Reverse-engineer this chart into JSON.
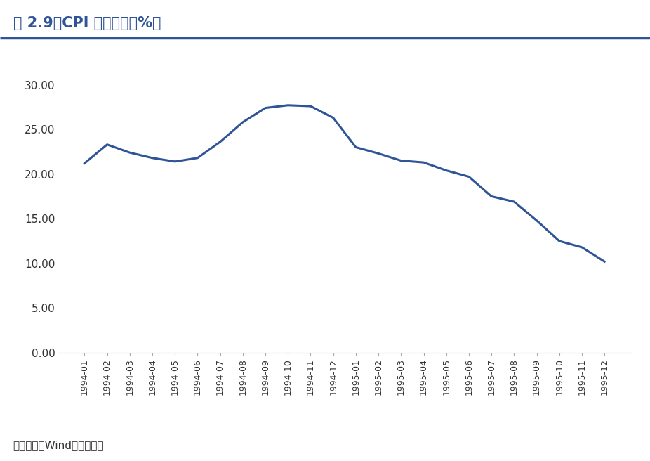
{
  "title": "图 2.9：CPI 回落明显（%）",
  "title_color": "#2F5597",
  "title_fontsize": 15,
  "line_color": "#2F5597",
  "line_width": 2.2,
  "categories": [
    "1994-01",
    "1994-02",
    "1994-03",
    "1994-04",
    "1994-05",
    "1994-06",
    "1994-07",
    "1994-08",
    "1994-09",
    "1994-10",
    "1994-11",
    "1994-12",
    "1995-01",
    "1995-02",
    "1995-03",
    "1995-04",
    "1995-05",
    "1995-06",
    "1995-07",
    "1995-08",
    "1995-09",
    "1995-10",
    "1995-11",
    "1995-12"
  ],
  "values": [
    21.2,
    23.3,
    22.4,
    21.8,
    21.4,
    21.8,
    23.6,
    25.8,
    27.4,
    27.7,
    27.6,
    26.3,
    23.0,
    22.3,
    21.5,
    21.3,
    20.4,
    19.7,
    17.5,
    16.9,
    14.8,
    12.5,
    11.8,
    10.2
  ],
  "yticks": [
    0.0,
    5.0,
    10.0,
    15.0,
    20.0,
    25.0,
    30.0
  ],
  "ylim": [
    0,
    32
  ],
  "background_color": "#ffffff",
  "footer_text": "资料来源：Wind、南华研究",
  "footer_fontsize": 11,
  "footer_color": "#333333",
  "divider_color": "#2F5597",
  "axis_color": "#aaaaaa",
  "tick_label_fontsize": 9,
  "ytick_label_fontsize": 11
}
